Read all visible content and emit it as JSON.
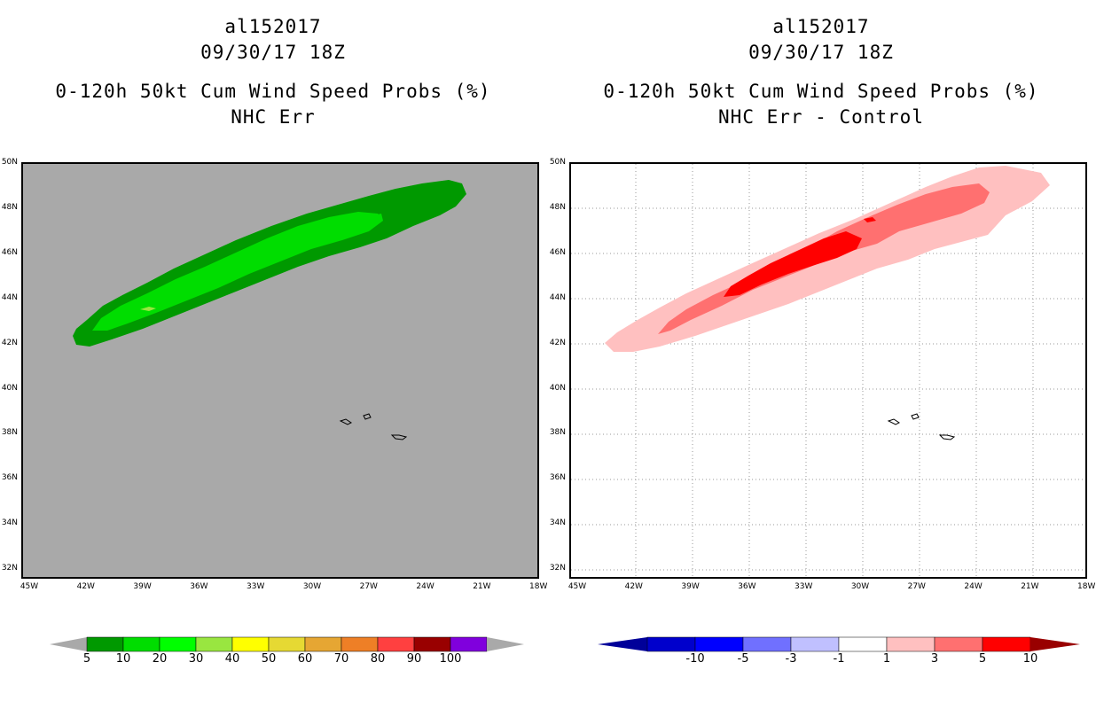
{
  "left_panel": {
    "storm_id": "al152017",
    "datetime": "09/30/17 18Z",
    "product": "0-120h 50kt Cum Wind Speed Probs (%)",
    "subtitle": "NHC Err",
    "colors": {
      "land_bg": "#a9a9a9",
      "c5": "#009900",
      "c10": "#00dd00",
      "c20": "#99e640"
    }
  },
  "right_panel": {
    "storm_id": "al152017",
    "datetime": "09/30/17 18Z",
    "product": "0-120h 50kt Cum Wind Speed Probs (%)",
    "subtitle": "NHC Err - Control",
    "colors": {
      "bg": "#ffffff",
      "c1": "#ffc0c0",
      "c3": "#ff7070",
      "c5": "#ff0000"
    }
  },
  "map": {
    "lat_labels": [
      "50N",
      "48N",
      "46N",
      "44N",
      "42N",
      "40N",
      "38N",
      "36N",
      "34N",
      "32N"
    ],
    "lon_labels": [
      "45W",
      "42W",
      "39W",
      "36W",
      "33W",
      "30W",
      "27W",
      "24W",
      "21W",
      "18W"
    ]
  },
  "left_colorbar": {
    "labels": [
      "5",
      "10",
      "20",
      "30",
      "40",
      "50",
      "60",
      "70",
      "80",
      "90",
      "100"
    ],
    "colors": [
      "#009900",
      "#00dd00",
      "#00ff00",
      "#99e640",
      "#ffff00",
      "#e6d933",
      "#e6a633",
      "#ee7f26",
      "#ff4040",
      "#990000",
      "#8000dd"
    ],
    "end_color": "#a9a9a9"
  },
  "right_colorbar": {
    "labels": [
      "-10",
      "-5",
      "-3",
      "-1",
      "1",
      "3",
      "5",
      "10"
    ],
    "colors": [
      "#0000cc",
      "#0000ff",
      "#7070ff",
      "#c0c0ff",
      "#ffffff",
      "#ffc0c0",
      "#ff7070",
      "#ff0000"
    ],
    "low_end_color": "#000099",
    "high_end_color": "#990000"
  }
}
